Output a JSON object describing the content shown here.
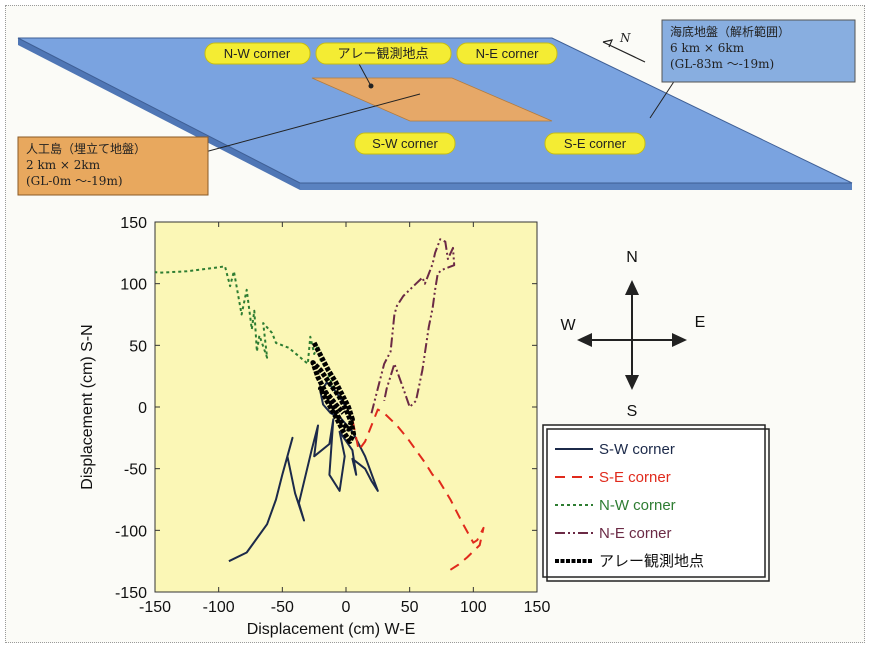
{
  "diagram": {
    "north_label": "N",
    "seabed_box": [
      "海底地盤（解析範囲）",
      "6 km × 6km",
      "(GL-83m 〜-19m)"
    ],
    "island_box": [
      "人工島（埋立て地盤）",
      "2 km × 2km",
      "(GL-0m 〜-19m)"
    ],
    "labels": {
      "nw": "N-W corner",
      "array": "アレー観測地点",
      "ne": "N-E corner",
      "sw": "S-W corner",
      "se": "S-E corner"
    },
    "colors": {
      "seabed": "#6f9bd8",
      "island": "#e2a35c",
      "pill": "#f4ec33",
      "panel_bg": "#f7f0a0"
    }
  },
  "compass": {
    "n": "N",
    "s": "S",
    "e": "E",
    "w": "W"
  },
  "chart_data": {
    "type": "line",
    "xlabel": "Displacement (cm)  W-E",
    "ylabel": "Displacement (cm)  S-N",
    "xlim": [
      -150,
      150
    ],
    "ylim": [
      -150,
      150
    ],
    "xticks": [
      -150,
      -100,
      -50,
      0,
      50,
      100,
      150
    ],
    "yticks": [
      -150,
      -100,
      -50,
      0,
      50,
      100,
      150
    ],
    "grid": false,
    "legend_position": "lower-right",
    "background": "#fbf7b6",
    "series": [
      {
        "name": "S-W corner",
        "color": "#1c2a4a",
        "dash": "solid",
        "x": [
          -92,
          -78,
          -62,
          -55,
          -50,
          -42,
          -46,
          -40,
          -33,
          -37,
          -27,
          -22,
          -25,
          -13,
          -10,
          -13,
          -5,
          -1,
          -5,
          5,
          8,
          5,
          15,
          20,
          25,
          15,
          5,
          -5,
          -12,
          -18,
          -20,
          -15,
          -10,
          -5,
          0
        ],
        "y": [
          -125,
          -118,
          -95,
          -75,
          -55,
          -25,
          -40,
          -70,
          -92,
          -78,
          -35,
          -15,
          -40,
          -30,
          -10,
          -55,
          -68,
          -40,
          -20,
          -35,
          -55,
          -42,
          -50,
          -60,
          -68,
          -40,
          -20,
          -8,
          -5,
          2,
          12,
          20,
          15,
          8,
          0
        ]
      },
      {
        "name": "S-E corner",
        "color": "#e02a1c",
        "dash": "10,7",
        "x": [
          82,
          88,
          95,
          105,
          108,
          103,
          100,
          92,
          82,
          72,
          68,
          62,
          55,
          48,
          40,
          30,
          25,
          20,
          15,
          10,
          5
        ],
        "y": [
          -132,
          -128,
          -122,
          -112,
          -98,
          -108,
          -110,
          -95,
          -75,
          -58,
          -55,
          -45,
          -35,
          -25,
          -15,
          -5,
          -2,
          -15,
          -28,
          -35,
          -10
        ]
      },
      {
        "name": "N-W corner",
        "color": "#2e7d32",
        "dash": "3,3",
        "x": [
          -160,
          -145,
          -125,
          -110,
          -95,
          -91,
          -88,
          -82,
          -78,
          -74,
          -72,
          -70,
          -68,
          -62,
          -65,
          -58,
          -55,
          -50,
          -45,
          -38,
          -30,
          -28,
          -25,
          -22,
          -20,
          -15,
          -10,
          -5
        ],
        "y": [
          110,
          109,
          110,
          112,
          114,
          98,
          110,
          75,
          95,
          63,
          78,
          45,
          58,
          40,
          68,
          60,
          52,
          50,
          48,
          42,
          35,
          57,
          43,
          50,
          38,
          30,
          15,
          5
        ]
      },
      {
        "name": "N-E corner",
        "color": "#6b2a45",
        "dash": "10,3,2,3,2,3",
        "x": [
          20,
          25,
          30,
          35,
          38,
          40,
          45,
          50,
          55,
          58,
          60,
          62,
          65,
          68,
          70,
          74,
          78,
          80,
          84,
          85,
          80,
          75,
          72,
          70,
          68,
          65,
          60,
          55,
          50,
          45,
          38,
          35,
          32,
          30
        ],
        "y": [
          -5,
          15,
          35,
          45,
          75,
          82,
          90,
          95,
          100,
          103,
          105,
          100,
          108,
          116,
          125,
          136,
          134,
          120,
          129,
          115,
          113,
          111,
          108,
          95,
          80,
          65,
          30,
          5,
          0,
          15,
          35,
          25,
          15,
          5
        ]
      },
      {
        "name": "アレー観測地点",
        "color": "#000000",
        "dash": "4,1.5",
        "width": 5,
        "x": [
          -25,
          -20,
          -14,
          -8,
          -3,
          2,
          5,
          2,
          -4,
          -10,
          -16,
          -22,
          -26,
          -20,
          -12,
          -5,
          0,
          4,
          6,
          3,
          -2,
          -8,
          -15,
          -20,
          -14,
          -8,
          -2
        ],
        "y": [
          52,
          42,
          30,
          20,
          10,
          0,
          -10,
          -18,
          -12,
          0,
          12,
          24,
          36,
          30,
          18,
          8,
          -2,
          -12,
          -22,
          -28,
          -20,
          -8,
          5,
          15,
          10,
          2,
          -5
        ]
      }
    ]
  }
}
